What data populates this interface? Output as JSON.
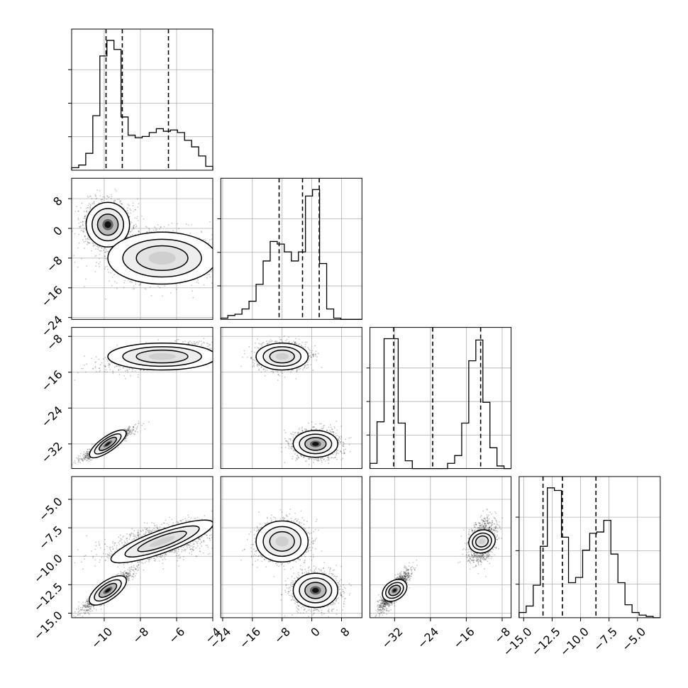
{
  "chart_data": {
    "type": "corner",
    "grid": true,
    "params": [
      {
        "range": [
          -11.8,
          -4.0
        ],
        "ticks": [
          -10,
          -8,
          -6,
          -4
        ],
        "tick_labels": [
          "−10",
          "−8",
          "−6",
          "−4"
        ],
        "quantiles": [
          -9.9,
          -9.0,
          -6.45
        ],
        "hist_edges": [
          -11.8,
          -4.0
        ],
        "hist_counts": [
          0.02,
          0.04,
          0.13,
          0.42,
          0.88,
          1.0,
          0.93,
          0.41,
          0.27,
          0.25,
          0.26,
          0.29,
          0.32,
          0.3,
          0.31,
          0.29,
          0.23,
          0.18,
          0.11,
          0.03
        ]
      },
      {
        "range": [
          -24.5,
          13.5
        ],
        "ticks": [
          -24,
          -16,
          -8,
          0,
          8
        ],
        "tick_labels": [
          "−24",
          "−16",
          "−8",
          "0",
          "8"
        ],
        "quantiles": [
          -8.8,
          -2.5,
          2.0
        ],
        "hist_edges": [
          -24.5,
          13.5
        ],
        "hist_counts": [
          0.01,
          0.03,
          0.04,
          0.08,
          0.14,
          0.27,
          0.45,
          0.6,
          0.58,
          0.52,
          0.45,
          0.52,
          0.95,
          1.0,
          0.43,
          0.08,
          0.01,
          0.0,
          0.0,
          0.0
        ]
      },
      {
        "range": [
          -37.5,
          -6.0
        ],
        "ticks": [
          -32,
          -24,
          -16,
          -8
        ],
        "tick_labels": [
          "−32",
          "−24",
          "−16",
          "−8"
        ],
        "quantiles": [
          -32.2,
          -23.5,
          -12.8
        ],
        "hist_edges": [
          -37.5,
          -6.0
        ],
        "hist_counts": [
          0.04,
          0.36,
          1.0,
          1.0,
          0.35,
          0.06,
          0.0,
          0.0,
          0.0,
          0.0,
          0.0,
          0.04,
          0.1,
          0.35,
          0.83,
          0.99,
          0.51,
          0.16,
          0.02,
          0.0
        ]
      },
      {
        "range": [
          -15.4,
          -3.0
        ],
        "ticks": [
          -15.0,
          -12.5,
          -10.0,
          -7.5,
          -5.0
        ],
        "tick_labels": [
          "−15.0",
          "−12.5",
          "−10.0",
          "−7.5",
          "−5.0"
        ],
        "quantiles": [
          -13.3,
          -11.6,
          -8.65
        ],
        "hist_edges": [
          -15.4,
          -3.0
        ],
        "hist_counts": [
          0.04,
          0.09,
          0.25,
          0.55,
          1.0,
          0.98,
          0.62,
          0.27,
          0.31,
          0.52,
          0.65,
          0.66,
          0.75,
          0.49,
          0.27,
          0.1,
          0.04,
          0.02,
          0.01,
          0.0
        ]
      }
    ],
    "clusters": [
      {
        "mean": [
          -9.8,
          1.0,
          -32.0,
          -13.0
        ],
        "sd": [
          0.6,
          3.0,
          1.5,
          0.75
        ],
        "weight": 0.55
      },
      {
        "mean": [
          -6.8,
          -8.0,
          -12.5,
          -8.7
        ],
        "sd": [
          1.5,
          3.5,
          1.5,
          0.9
        ],
        "weight": 0.45
      }
    ]
  }
}
